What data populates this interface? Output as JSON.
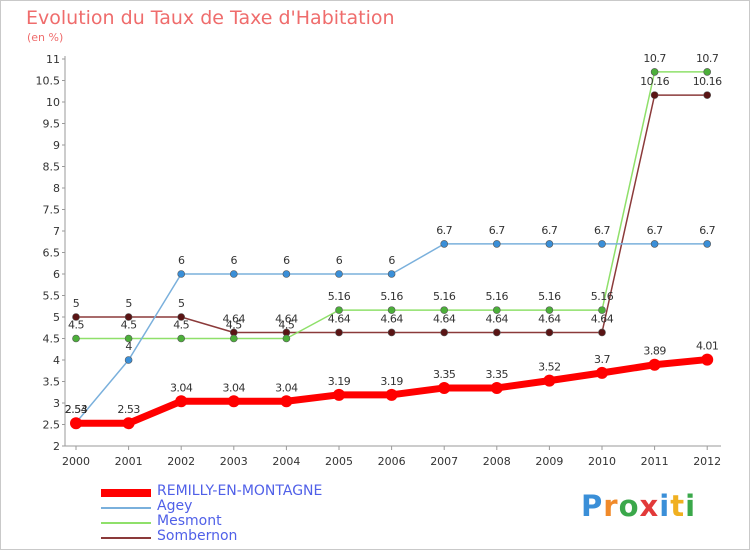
{
  "title": "Evolution du Taux de Taxe d'Habitation",
  "subtitle": "(en %)",
  "logo": {
    "text": "Proxiti",
    "colors": [
      "#3a8fd8",
      "#f08a2a",
      "#3aa84a",
      "#e23a3a",
      "#3a8fd8",
      "#f0b020",
      "#3aa84a"
    ]
  },
  "chart_data": {
    "type": "line",
    "title": "Evolution du Taux de Taxe d'Habitation",
    "subtitle": "(en %)",
    "xlabel": "",
    "ylabel": "(en %)",
    "x": [
      "2000",
      "2001",
      "2002",
      "2003",
      "2004",
      "2005",
      "2006",
      "2007",
      "2008",
      "2009",
      "2010",
      "2011",
      "2012"
    ],
    "ylim": [
      2,
      11
    ],
    "yticks": [
      "2",
      "2.5",
      "3",
      "3.5",
      "4",
      "4.5",
      "5",
      "5.5",
      "6",
      "6.5",
      "7",
      "7.5",
      "8",
      "8.5",
      "9",
      "9.5",
      "10",
      "10.5",
      "11"
    ],
    "grid": false,
    "legend_position": "bottom-left",
    "series": [
      {
        "name": "Sombernon",
        "color": "#8b3a3a",
        "marker_color": "#5a1414",
        "values": [
          5,
          5,
          5,
          4.64,
          4.64,
          4.64,
          4.64,
          4.64,
          4.64,
          4.64,
          4.64,
          10.16,
          10.16
        ],
        "labels": [
          "5",
          "5",
          "5",
          "4.64",
          "4.64",
          "4.64",
          "4.64",
          "4.64",
          "4.64",
          "4.64",
          "4.64",
          "10.16",
          "10.16"
        ]
      },
      {
        "name": "Mesmont",
        "color": "#8fe06a",
        "marker_color": "#4caf3a",
        "values": [
          4.5,
          4.5,
          4.5,
          4.5,
          4.5,
          5.16,
          5.16,
          5.16,
          5.16,
          5.16,
          5.16,
          10.7,
          10.7
        ],
        "labels": [
          "4.5",
          "4.5",
          "4.5",
          "4.5",
          "4.5",
          "5.16",
          "5.16",
          "5.16",
          "5.16",
          "5.16",
          "5.16",
          "10.7",
          "10.7"
        ]
      },
      {
        "name": "Agey",
        "color": "#7ab0dc",
        "marker_color": "#3a8fd8",
        "values": [
          2.54,
          4,
          6,
          6,
          6,
          6,
          6,
          6.7,
          6.7,
          6.7,
          6.7,
          6.7,
          6.7
        ],
        "labels": [
          "2.54",
          "4",
          "6",
          "6",
          "6",
          "6",
          "6",
          "6.7",
          "6.7",
          "6.7",
          "6.7",
          "6.7",
          "6.7"
        ]
      },
      {
        "name": "REMILLY-EN-MONTAGNE",
        "color": "#ff0000",
        "marker_color": "#ff0000",
        "values": [
          2.53,
          2.53,
          3.04,
          3.04,
          3.04,
          3.19,
          3.19,
          3.35,
          3.35,
          3.52,
          3.7,
          3.89,
          4.01
        ],
        "labels": [
          "2.53",
          "2.53",
          "3.04",
          "3.04",
          "3.04",
          "3.19",
          "3.19",
          "3.35",
          "3.35",
          "3.52",
          "3.7",
          "3.89",
          "4.01"
        ]
      }
    ],
    "legend": [
      "REMILLY-EN-MONTAGNE",
      "Agey",
      "Mesmont",
      "Sombernon"
    ]
  }
}
